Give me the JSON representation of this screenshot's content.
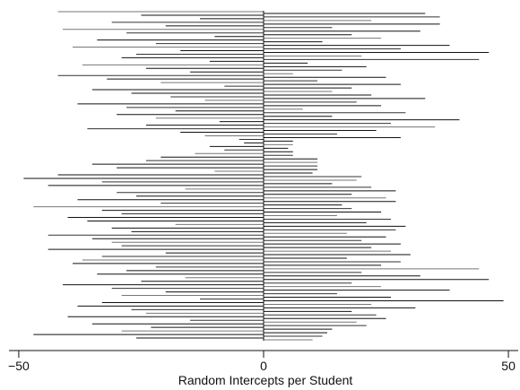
{
  "chart_data": {
    "type": "bar",
    "orientation": "horizontal",
    "title": "",
    "xlabel": "Random Intercepts per Student",
    "ylabel": "",
    "xlim": [
      -52,
      52
    ],
    "xticks": [
      -50,
      0,
      50
    ],
    "xtick_labels": [
      "−50",
      "0",
      "50"
    ],
    "grid": false,
    "legend": false,
    "series": [
      {
        "values": [
          -42,
          33,
          -25,
          36,
          -13,
          22,
          -31,
          36,
          -20,
          14,
          -41,
          32,
          -28,
          18,
          -10,
          24,
          -34,
          12,
          -22,
          38,
          -39,
          28,
          -17,
          46,
          -26,
          20,
          -29,
          44,
          -11,
          9,
          -37,
          21,
          -24,
          16,
          -15,
          6,
          -42,
          25,
          -32,
          11,
          -21,
          28,
          -8,
          18,
          -35,
          14,
          -27,
          22,
          -19,
          33,
          -12,
          19,
          -38,
          24,
          -28,
          8,
          -18,
          29,
          -30,
          14,
          -22,
          40,
          -9,
          26,
          -24,
          35,
          -36,
          23,
          -17,
          15,
          -12,
          28,
          -5,
          6,
          -4,
          6,
          -11,
          5,
          -8,
          6,
          -14,
          6,
          -21,
          11,
          -24,
          11,
          -35,
          11,
          -30,
          11,
          -10,
          10,
          -42,
          20,
          -49,
          19,
          -33,
          14,
          -44,
          22,
          -16,
          27,
          -30,
          18,
          -26,
          25,
          -38,
          27,
          -21,
          16,
          -47,
          18,
          -33,
          24,
          -29,
          15,
          -40,
          26,
          -36,
          21,
          -18,
          29,
          -31,
          27,
          -27,
          17,
          -44,
          25,
          -35,
          20,
          -31,
          28,
          -29,
          22,
          -44,
          26,
          -20,
          30,
          -33,
          17,
          -37,
          28,
          -39,
          24,
          -22,
          44,
          -28,
          20,
          -34,
          32,
          -16,
          46,
          -25,
          18,
          -41,
          24,
          -31,
          38,
          -20,
          15,
          -29,
          26,
          -13,
          49,
          -33,
          22,
          -38,
          31,
          -27,
          18,
          -24,
          23,
          -40,
          25,
          -15,
          19,
          -35,
          21,
          -23,
          14,
          -29,
          13,
          -47,
          12,
          -26,
          10
        ]
      }
    ]
  }
}
